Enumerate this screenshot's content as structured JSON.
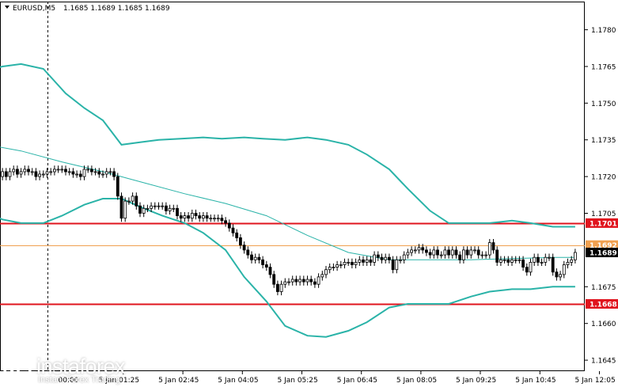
{
  "header": {
    "symbol_label": "EURUSD,M5",
    "ohlc": "1.1685 1.1689 1.1685 1.1689"
  },
  "colors": {
    "background": "#ffffff",
    "candle": "#000000",
    "bands": "#2ab3a8",
    "ma": "#2ab3a8",
    "red_level": "#e0141e",
    "orange_level": "#f0a050",
    "price_tag": "#000000",
    "axis": "#000000"
  },
  "watermark": {
    "brand": "instaforex",
    "tagline": "Instant Forex Trading",
    "logo_icon": "instaforex-logo-icon"
  },
  "chart_data": {
    "type": "candlestick",
    "title": "EURUSD,M5",
    "ylim": [
      1.16405,
      1.17915
    ],
    "y_ticks": [
      "1.1780",
      "1.1765",
      "1.1750",
      "1.1735",
      "1.1720",
      "1.1705",
      "1.1675",
      "1.1660",
      "1.1645"
    ],
    "x_ticks": [
      "5 Jan 01:25",
      "5 Jan 02:45",
      "5 Jan 04:05",
      "5 Jan 05:25",
      "5 Jan 06:45",
      "5 Jan 08:05",
      "5 Jan 09:25",
      "5 Jan 10:45",
      "5 Jan 12:05"
    ],
    "x_tick_positions": [
      5.5,
      21.5,
      37.5,
      53.5,
      69.5,
      85.5,
      101.5,
      117.5,
      133.5
    ],
    "x_partial_tick": "00:00",
    "x_partial_tick_position": -15,
    "grid": false,
    "cursor_line_index": -15,
    "levels": [
      {
        "value": 1.1701,
        "label": "1.1701",
        "color": "#e0141e",
        "style": "solid"
      },
      {
        "value": 1.1668,
        "label": "1.1668",
        "color": "#e0141e",
        "style": "solid"
      },
      {
        "value": 1.1692,
        "label": "1.1692",
        "color": "#f0a050",
        "style": "solid"
      }
    ],
    "current_price": {
      "value": 1.1689,
      "label": "1.1689"
    },
    "close_prices": [
      1.1719,
      1.1719,
      1.172,
      1.1722,
      1.172,
      1.1722,
      1.1723,
      1.1721,
      1.1722,
      1.1723,
      1.1722,
      1.1722,
      1.172,
      1.1721,
      1.1721,
      1.1722,
      1.1722,
      1.1723,
      1.1723,
      1.1723,
      1.1722,
      1.1722,
      1.1721,
      1.1721,
      1.172,
      1.1723,
      1.1723,
      1.1722,
      1.1722,
      1.1721,
      1.1721,
      1.1722,
      1.1722,
      1.172,
      1.1712,
      1.1703,
      1.171,
      1.171,
      1.1712,
      1.1708,
      1.1705,
      1.1707,
      1.1707,
      1.1708,
      1.1708,
      1.1708,
      1.1708,
      1.1706,
      1.1707,
      1.1707,
      1.1704,
      1.1703,
      1.1704,
      1.1703,
      1.1705,
      1.1704,
      1.1703,
      1.1704,
      1.1703,
      1.1703,
      1.1703,
      1.1703,
      1.1702,
      1.1701,
      1.1699,
      1.1697,
      1.1695,
      1.1692,
      1.169,
      1.1688,
      1.1686,
      1.1687,
      1.1686,
      1.1684,
      1.1683,
      1.168,
      1.1676,
      1.1673,
      1.1676,
      1.1677,
      1.1677,
      1.1678,
      1.1677,
      1.1678,
      1.1677,
      1.1678,
      1.1677,
      1.1676,
      1.1679,
      1.168,
      1.1682,
      1.1683,
      1.1683,
      1.1684,
      1.1684,
      1.1685,
      1.1685,
      1.1684,
      1.1685,
      1.1686,
      1.1685,
      1.1686,
      1.1685,
      1.1688,
      1.1687,
      1.1686,
      1.1687,
      1.1686,
      1.1682,
      1.1686,
      1.1686,
      1.1688,
      1.1689,
      1.169,
      1.169,
      1.1691,
      1.169,
      1.1689,
      1.1688,
      1.169,
      1.1688,
      1.1688,
      1.169,
      1.1688,
      1.169,
      1.1688,
      1.1686,
      1.169,
      1.1688,
      1.169,
      1.169,
      1.1688,
      1.1688,
      1.1688,
      1.1693,
      1.169,
      1.1685,
      1.1686,
      1.1686,
      1.1685,
      1.1686,
      1.1686,
      1.1686,
      1.1683,
      1.1681,
      1.1685,
      1.1687,
      1.1685,
      1.1685,
      1.1687,
      1.1687,
      1.1681,
      1.1679,
      1.168,
      1.1684,
      1.1685,
      1.1686,
      1.1689
    ],
    "series": [
      {
        "name": "",
        "kind": "upper_band",
        "points": [
          [
            -33,
            1.17625
          ],
          [
            -27,
            1.1765
          ],
          [
            -22,
            1.1766
          ],
          [
            -16,
            1.1764
          ],
          [
            -10,
            1.1754
          ],
          [
            -5,
            1.1748
          ],
          [
            0,
            1.1743
          ],
          [
            5,
            1.1733
          ],
          [
            10,
            1.1734
          ],
          [
            15,
            1.1735
          ],
          [
            21,
            1.17355
          ],
          [
            27,
            1.1736
          ],
          [
            32,
            1.17355
          ],
          [
            38,
            1.1736
          ],
          [
            43,
            1.17355
          ],
          [
            49,
            1.1735
          ],
          [
            55,
            1.1736
          ],
          [
            60,
            1.1735
          ],
          [
            66,
            1.1733
          ],
          [
            71,
            1.1729
          ],
          [
            77,
            1.1723
          ],
          [
            82,
            1.1715
          ],
          [
            88,
            1.1706
          ],
          [
            93,
            1.1701
          ],
          [
            99,
            1.1701
          ],
          [
            104,
            1.1701
          ],
          [
            110,
            1.1702
          ],
          [
            115,
            1.1701
          ],
          [
            121,
            1.16995
          ],
          [
            126,
            1.16995
          ],
          [
            127,
            1.16995
          ]
        ]
      },
      {
        "name": "",
        "kind": "middle_ma",
        "points": [
          [
            -33,
            1.17335
          ],
          [
            -22,
            1.17305
          ],
          [
            -11,
            1.1726
          ],
          [
            0,
            1.1722
          ],
          [
            11,
            1.17175
          ],
          [
            22,
            1.1713
          ],
          [
            33,
            1.1709
          ],
          [
            44,
            1.1704
          ],
          [
            55,
            1.1696
          ],
          [
            66,
            1.1689
          ],
          [
            77,
            1.1686
          ],
          [
            88,
            1.1686
          ],
          [
            99,
            1.1686
          ],
          [
            110,
            1.16865
          ],
          [
            121,
            1.1687
          ],
          [
            127,
            1.1687
          ]
        ]
      },
      {
        "name": "",
        "kind": "lower_band",
        "points": [
          [
            -33,
            1.1706
          ],
          [
            -27,
            1.17025
          ],
          [
            -22,
            1.1701
          ],
          [
            -16,
            1.1701
          ],
          [
            -11,
            1.1704
          ],
          [
            -5,
            1.17085
          ],
          [
            0,
            1.1711
          ],
          [
            5,
            1.1711
          ],
          [
            11,
            1.1707
          ],
          [
            16,
            1.1704
          ],
          [
            22,
            1.1701
          ],
          [
            27,
            1.1697
          ],
          [
            33,
            1.169
          ],
          [
            38,
            1.1679
          ],
          [
            44,
            1.1669
          ],
          [
            49,
            1.1659
          ],
          [
            55,
            1.1655
          ],
          [
            60,
            1.16545
          ],
          [
            66,
            1.1657
          ],
          [
            71,
            1.16605
          ],
          [
            77,
            1.16665
          ],
          [
            82,
            1.1668
          ],
          [
            88,
            1.1668
          ],
          [
            93,
            1.1668
          ],
          [
            99,
            1.1671
          ],
          [
            104,
            1.1673
          ],
          [
            110,
            1.1674
          ],
          [
            115,
            1.1674
          ],
          [
            121,
            1.1675
          ],
          [
            127,
            1.1675
          ]
        ]
      }
    ]
  }
}
